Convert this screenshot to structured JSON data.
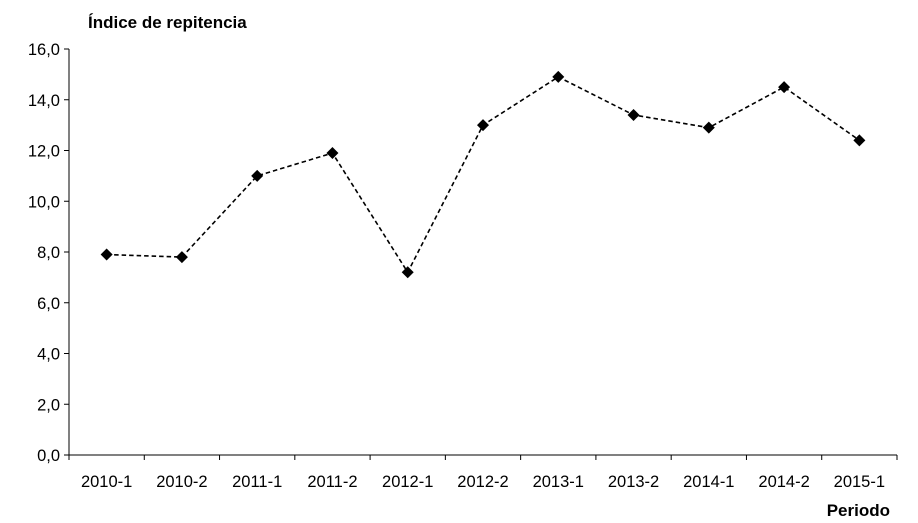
{
  "chart_data": {
    "type": "line",
    "title": "",
    "ylabel": "Índice de repitencia",
    "xlabel": "Periodo",
    "categories": [
      "2010-1",
      "2010-2",
      "2011-1",
      "2011-2",
      "2012-1",
      "2012-2",
      "2013-1",
      "2013-2",
      "2014-1",
      "2014-2",
      "2015-1"
    ],
    "series": [
      {
        "values": [
          7.9,
          7.8,
          11.0,
          11.9,
          7.2,
          13.0,
          14.9,
          13.4,
          12.9,
          14.5,
          12.4
        ]
      }
    ],
    "ylim": [
      0,
      16
    ],
    "yticks": [
      "0,0",
      "2,0",
      "4,0",
      "6,0",
      "8,0",
      "10,0",
      "12,0",
      "14,0",
      "16,0"
    ],
    "grid": false,
    "legend": "none",
    "line_style": "dashed",
    "marker": "diamond",
    "colors": {
      "line": "#000000",
      "marker": "#000000",
      "axis": "#000000"
    }
  }
}
